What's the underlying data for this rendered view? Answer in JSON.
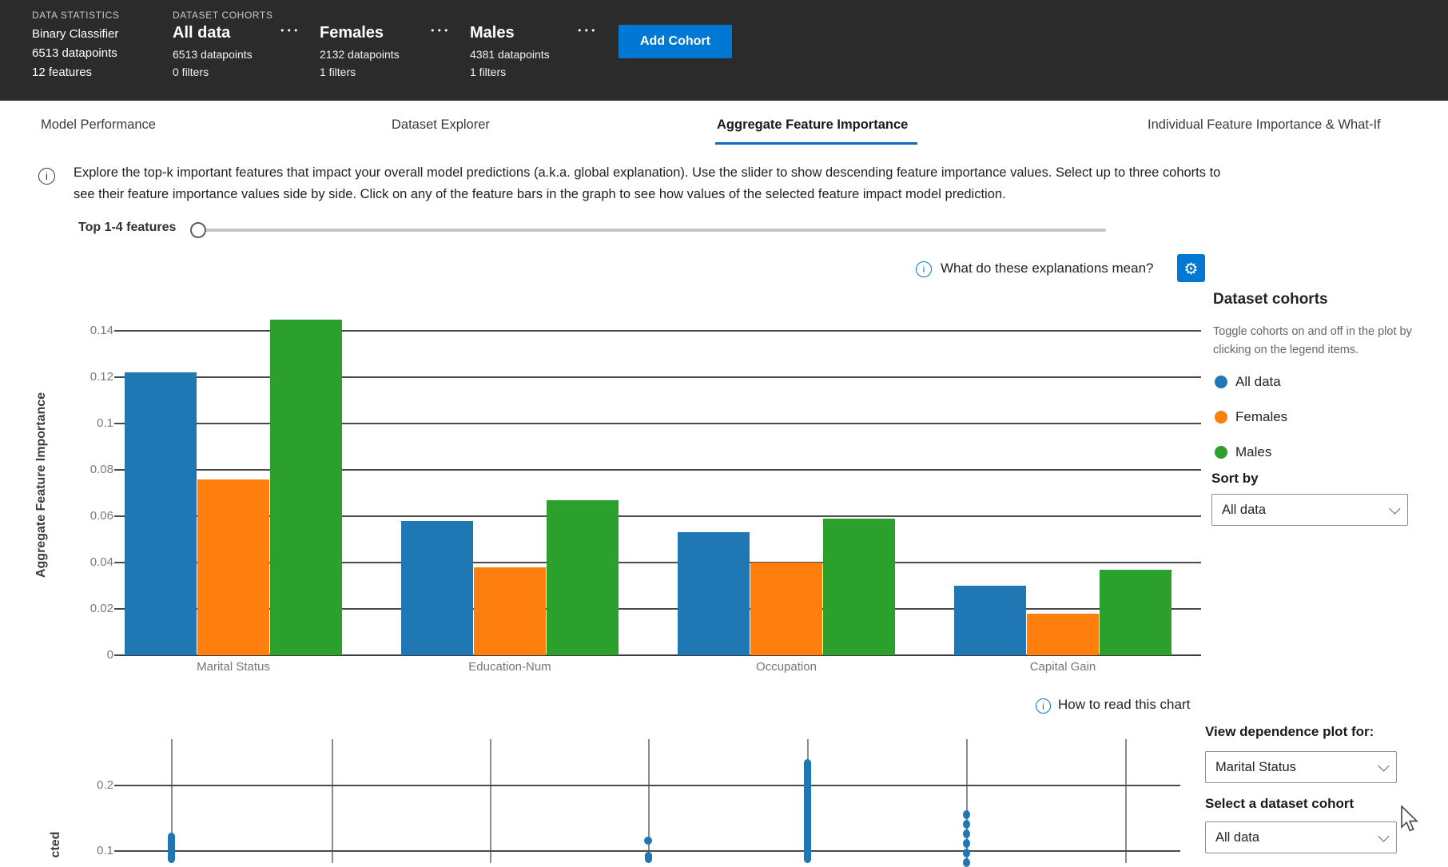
{
  "topbar": {
    "data_statistics": {
      "label": "DATA STATISTICS",
      "model": "Binary Classifier",
      "datapoints": "6513 datapoints",
      "features": "12 features"
    },
    "cohorts_label": "DATASET COHORTS",
    "cohorts": [
      {
        "name": "All data",
        "datapoints": "6513 datapoints",
        "filters": "0 filters"
      },
      {
        "name": "Females",
        "datapoints": "2132 datapoints",
        "filters": "1 filters"
      },
      {
        "name": "Males",
        "datapoints": "4381 datapoints",
        "filters": "1 filters"
      }
    ],
    "add_cohort_button": "Add Cohort"
  },
  "icons": {
    "ellipsis": "•••",
    "info": "i",
    "gear": "⚙"
  },
  "tabs": [
    {
      "label": "Model Performance"
    },
    {
      "label": "Dataset Explorer"
    },
    {
      "label": "Aggregate Feature Importance"
    },
    {
      "label": "Individual Feature Importance & What-If"
    }
  ],
  "active_tab": "Aggregate Feature Importance",
  "description": {
    "lines": [
      "Explore the top-k important features that impact your overall model predictions (a.k.a. global explanation). Use the slider to show descending feature importance values. Select up to three cohorts to",
      "see their feature importance values side by side. Click on any of the feature bars in the graph to see how values of the selected feature impact model prediction."
    ]
  },
  "slider": {
    "label": "Top 1-4 features"
  },
  "explanations_link": "What do these explanations mean?",
  "colors": {
    "accent": "#0078d4",
    "all_data": "#1f77b4",
    "females": "#ff7f0e",
    "males": "#2ca02c"
  },
  "chart_data": [
    {
      "type": "bar",
      "title": "",
      "categories": [
        "Marital Status",
        "Education-Num",
        "Occupation",
        "Capital Gain"
      ],
      "series": [
        {
          "name": "All data",
          "color": "#1f77b4",
          "values": [
            0.122,
            0.058,
            0.053,
            0.03
          ]
        },
        {
          "name": "Females",
          "color": "#ff7f0e",
          "values": [
            0.076,
            0.038,
            0.04,
            0.018
          ]
        },
        {
          "name": "Males",
          "color": "#2ca02c",
          "values": [
            0.145,
            0.067,
            0.059,
            0.037
          ]
        }
      ],
      "xlabel": "",
      "ylabel": "Aggregate Feature Importance",
      "ylim": [
        0,
        0.15
      ],
      "ytick_labels": [
        "0",
        "0.02",
        "0.04",
        "0.06",
        "0.08",
        "0.1",
        "0.12",
        "0.14"
      ],
      "grid": true,
      "legend_position": "right-panel"
    },
    {
      "type": "scatter",
      "title": "",
      "ylabel_visible_fragment": "cted",
      "ytick_labels": [
        "0.2",
        "0.1"
      ],
      "x_gridline_count": 7,
      "xtick_labels_visible": false,
      "point_color": "#1f77b4",
      "clusters": [
        {
          "line": 1,
          "from": 0.128,
          "to": 0.082,
          "style": "solid"
        },
        {
          "line": 4,
          "from": 0.12,
          "to": 0.112,
          "style": "dot"
        },
        {
          "line": 4,
          "from": 0.099,
          "to": 0.082,
          "style": "solid"
        },
        {
          "line": 5,
          "from": 0.24,
          "to": 0.082,
          "style": "solid"
        },
        {
          "line": 6,
          "from": 0.157,
          "to": 0.082,
          "style": "beaded"
        }
      ]
    }
  ],
  "cohort_panel": {
    "title": "Dataset cohorts",
    "hint": "Toggle cohorts on and off in the plot by clicking on the legend items.",
    "legend": [
      {
        "label": "All data",
        "color": "#1f77b4"
      },
      {
        "label": "Females",
        "color": "#ff7f0e"
      },
      {
        "label": "Males",
        "color": "#2ca02c"
      }
    ],
    "sort_by_label": "Sort by",
    "sort_by_value": "All data"
  },
  "how_to_read_link": "How to read this chart",
  "dependence_panel": {
    "view_label": "View dependence plot for:",
    "view_value": "Marital Status",
    "cohort_label": "Select a dataset cohort",
    "cohort_value": "All data"
  }
}
